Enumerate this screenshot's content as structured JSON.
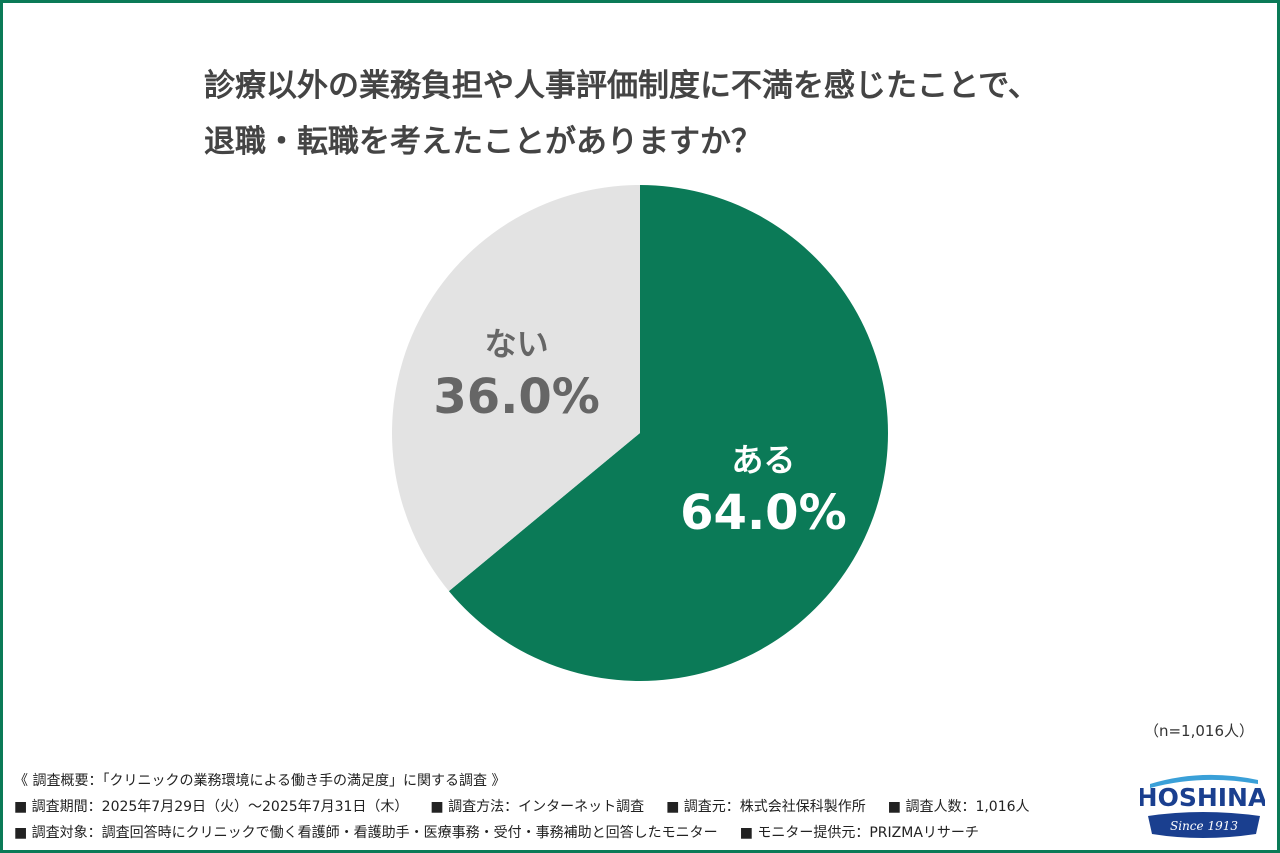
{
  "title_lines": [
    "診療以外の業務負担や人事評価制度に不満を感じたことで、",
    "退職・転職を考えたことがありますか？"
  ],
  "chart_data": {
    "type": "pie",
    "slices": [
      {
        "label": "ある",
        "value": 64.0,
        "value_label": "64.0%",
        "color": "#0b7a57",
        "text_color": "#ffffff"
      },
      {
        "label": "ない",
        "value": 36.0,
        "value_label": "36.0%",
        "color": "#e3e3e3",
        "text_color": "#666666"
      }
    ],
    "start": "12 o'clock, clockwise"
  },
  "sample_note": "（n=1,016人）",
  "footer": {
    "heading": "《 調査概要：「クリニックの業務環境による働き手の満足度」に関する調査 》",
    "items_row1": [
      "■ 調査期間：2025年7月29日（火）～2025年7月31日（木）",
      "■ 調査方法：インターネット調査",
      "■ 調査元：株式会社保科製作所",
      "■ 調査人数：1,016人"
    ],
    "items_row2": [
      "■ 調査対象：調査回答時にクリニックで働く看護師・看護助手・医療事務・受付・事務補助と回答したモニター",
      "■ モニター提供元：PRIZMAリサーチ"
    ]
  },
  "logo": {
    "name": "HOSHINA",
    "tagline": "Since 1913",
    "colors": {
      "primary": "#1a3f8f",
      "accent": "#3aa0d8"
    }
  },
  "colors": {
    "frame": "#0b7a57"
  }
}
